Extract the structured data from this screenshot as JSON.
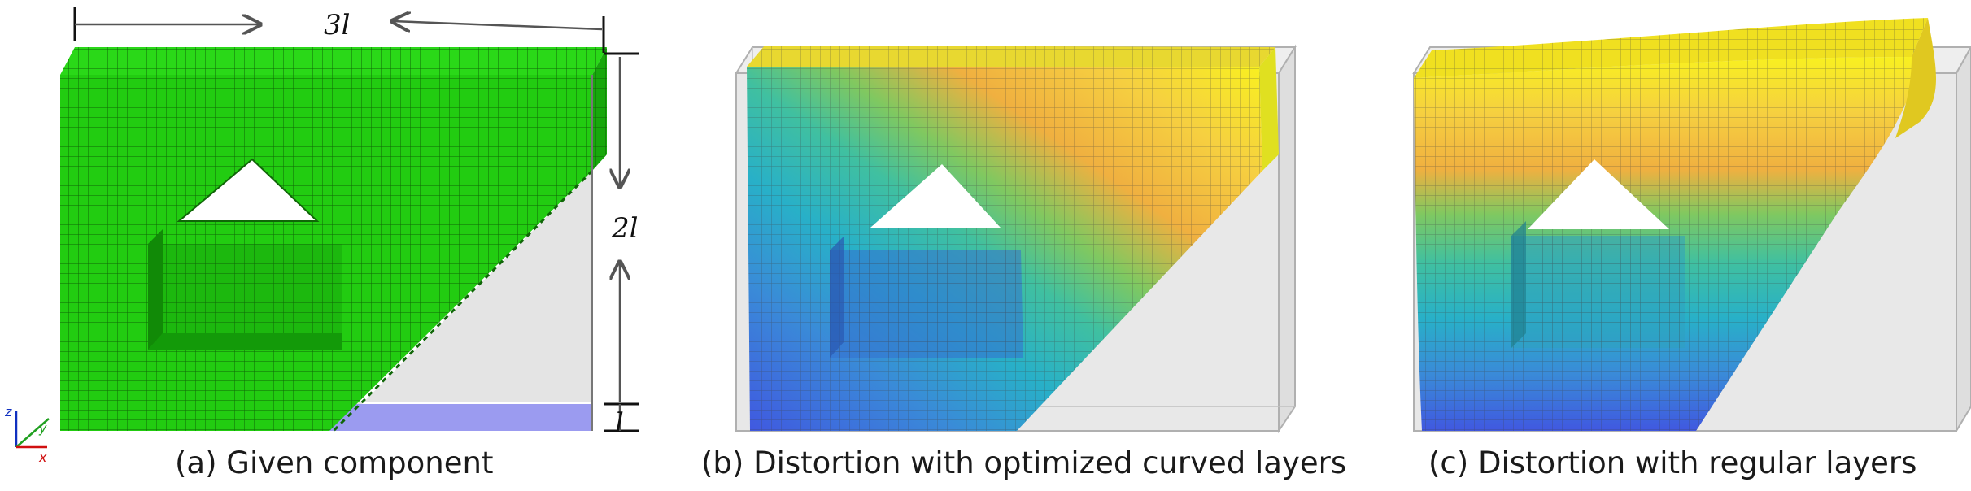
{
  "panels": {
    "a": {
      "caption": "(a) Given component"
    },
    "b": {
      "caption": "(b) Distortion with optimized curved layers"
    },
    "c": {
      "caption": "(c) Distortion with regular layers"
    }
  },
  "dimensions": {
    "width_label": "3l",
    "height_label": "2l",
    "base_label": "l"
  },
  "axes": {
    "z": "z",
    "y": "y",
    "x": "x"
  },
  "colors": {
    "component_green": "#22cc11",
    "base_plate": "#9b9bf0",
    "bounding_box": "#e6e6e6"
  },
  "colormaps": {
    "optimized": [
      "#4058e0",
      "#3a8ad8",
      "#28b0c8",
      "#40c0a0",
      "#80c860",
      "#f0b040",
      "#f6d040",
      "#f8f020"
    ],
    "regular": [
      "#4058e0",
      "#3a8ad8",
      "#28b0c8",
      "#40c0a0",
      "#80c860",
      "#f0b040",
      "#f6d040",
      "#f8f020"
    ]
  }
}
